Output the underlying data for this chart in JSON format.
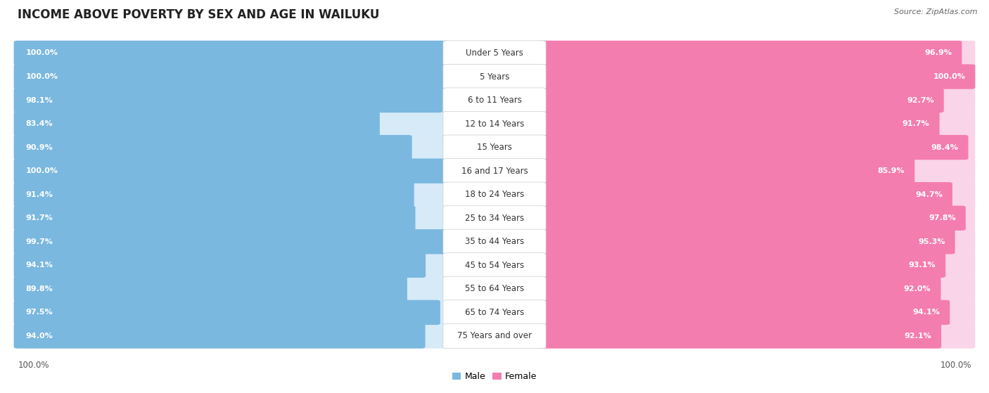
{
  "title": "INCOME ABOVE POVERTY BY SEX AND AGE IN WAILUKU",
  "source": "Source: ZipAtlas.com",
  "categories": [
    "Under 5 Years",
    "5 Years",
    "6 to 11 Years",
    "12 to 14 Years",
    "15 Years",
    "16 and 17 Years",
    "18 to 24 Years",
    "25 to 34 Years",
    "35 to 44 Years",
    "45 to 54 Years",
    "55 to 64 Years",
    "65 to 74 Years",
    "75 Years and over"
  ],
  "male_values": [
    100.0,
    100.0,
    98.1,
    83.4,
    90.9,
    100.0,
    91.4,
    91.7,
    99.7,
    94.1,
    89.8,
    97.5,
    94.0
  ],
  "female_values": [
    96.9,
    100.0,
    92.7,
    91.7,
    98.4,
    85.9,
    94.7,
    97.8,
    95.3,
    93.1,
    92.0,
    94.1,
    92.1
  ],
  "male_color": "#7ab8df",
  "female_color": "#f47db0",
  "male_track_color": "#d6eaf8",
  "female_track_color": "#fad4e8",
  "row_bg_color": "#ebebeb",
  "gap_color": "#ffffff",
  "label_bg": "#ffffff",
  "title_fontsize": 12,
  "label_fontsize": 8.5,
  "value_fontsize": 8,
  "legend_fontsize": 9,
  "source_fontsize": 8,
  "male_label": "Male",
  "female_label": "Female"
}
